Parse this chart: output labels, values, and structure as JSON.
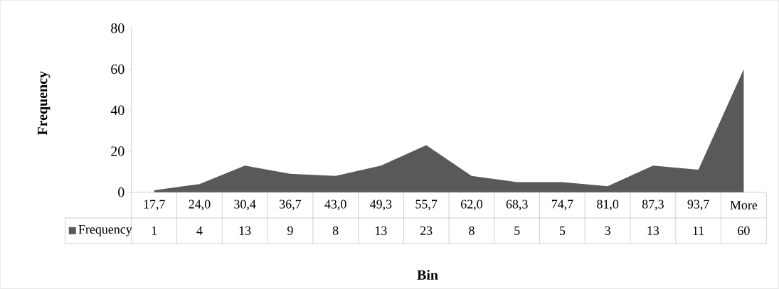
{
  "chart_data": {
    "type": "area",
    "xlabel": "Bin",
    "ylabel": "Frequency",
    "categories": [
      "17,7",
      "24,0",
      "30,4",
      "36,7",
      "43,0",
      "49,3",
      "55,7",
      "62,0",
      "68,3",
      "74,7",
      "81,0",
      "87,3",
      "93,7",
      "More"
    ],
    "series": [
      {
        "name": "Frequency",
        "color": "#595959",
        "values": [
          1,
          4,
          13,
          9,
          8,
          13,
          23,
          8,
          5,
          5,
          3,
          13,
          11,
          60
        ]
      }
    ],
    "ylim": [
      0,
      80
    ],
    "yticks": [
      0,
      20,
      40,
      60,
      80
    ],
    "data_labels": true,
    "legend": "bottom"
  }
}
